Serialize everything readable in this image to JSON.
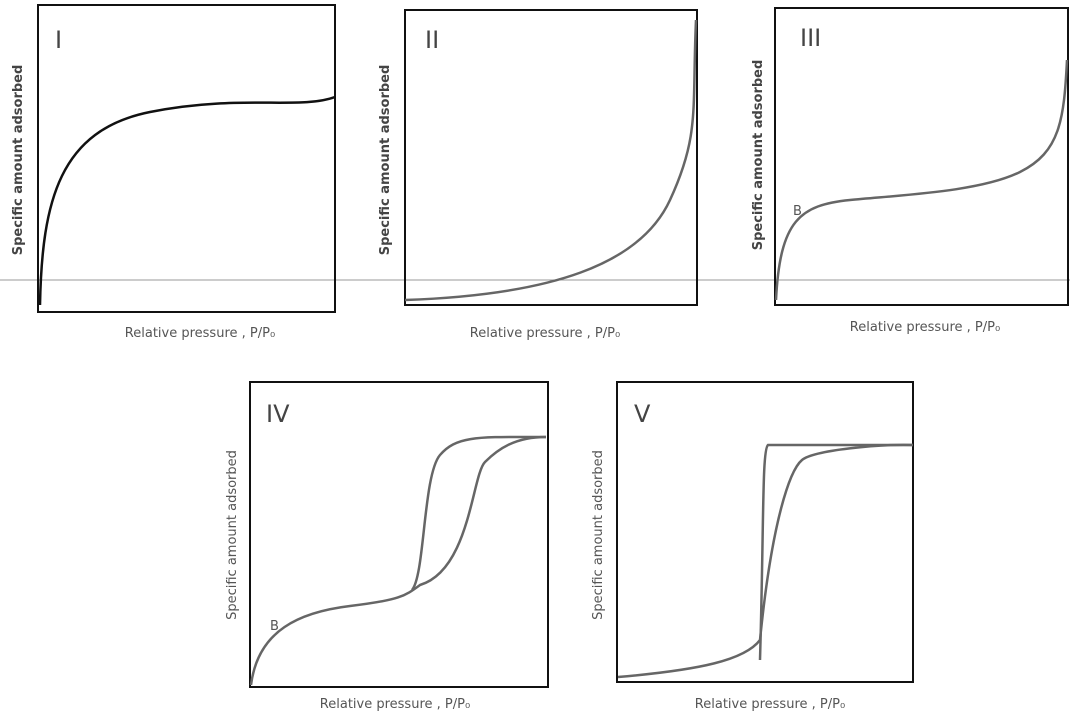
{
  "panels": [
    {
      "label": "I",
      "y_label": "Specific amount adsorbed",
      "x_label": "Relative pressure , P/P₀"
    },
    {
      "label": "II",
      "y_label": "Specific amount adsorbed",
      "x_label": "Relative pressure , P/P₀"
    },
    {
      "label": "III",
      "y_label": "Specific amount adsorbed",
      "x_label": "Relative pressure , P/P₀",
      "point_label": "B"
    },
    {
      "label": "IV",
      "y_label": "Specific amount adsorbed",
      "x_label": "Relative pressure , P/P₀",
      "point_label": "B"
    },
    {
      "label": "V",
      "y_label": "Specific amount adsorbed",
      "x_label": "Relative pressure , P/P₀"
    }
  ]
}
